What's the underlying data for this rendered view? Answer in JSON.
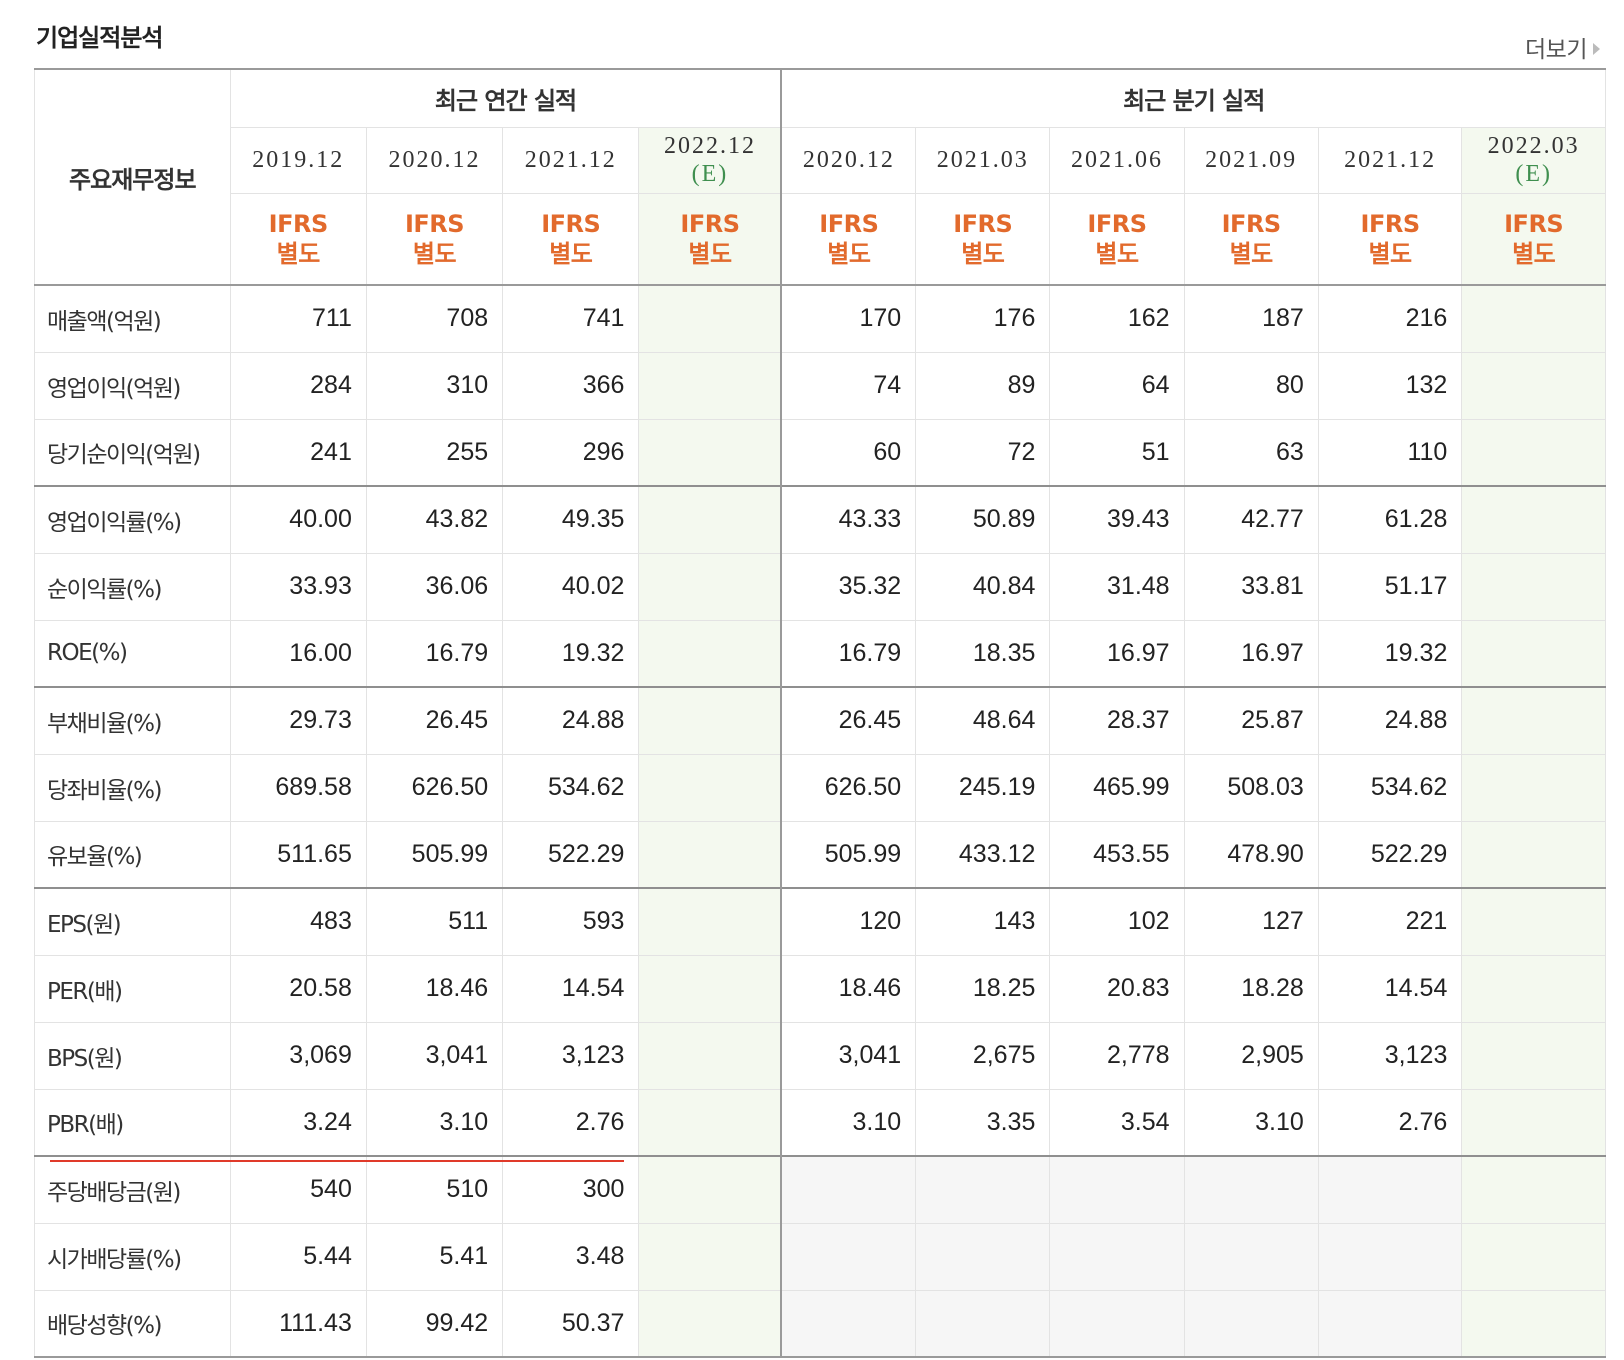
{
  "header": {
    "title": "기업실적분석",
    "more_label": "더보기"
  },
  "table": {
    "row_header": "주요재무정보",
    "groups": [
      "최근 연간 실적",
      "최근 분기 실적"
    ],
    "periods": [
      {
        "label": "2019.12",
        "est": ""
      },
      {
        "label": "2020.12",
        "est": ""
      },
      {
        "label": "2021.12",
        "est": ""
      },
      {
        "label": "2022.12",
        "est": "(E)"
      },
      {
        "label": "2020.12",
        "est": ""
      },
      {
        "label": "2021.03",
        "est": ""
      },
      {
        "label": "2021.06",
        "est": ""
      },
      {
        "label": "2021.09",
        "est": ""
      },
      {
        "label": "2021.12",
        "est": ""
      },
      {
        "label": "2022.03",
        "est": "(E)"
      }
    ],
    "ifrs_line1": "IFRS",
    "ifrs_line2": "별도",
    "rows": [
      {
        "label": "매출액(억원)",
        "values": [
          "711",
          "708",
          "741",
          "",
          "170",
          "176",
          "162",
          "187",
          "216",
          ""
        ]
      },
      {
        "label": "영업이익(억원)",
        "values": [
          "284",
          "310",
          "366",
          "",
          "74",
          "89",
          "64",
          "80",
          "132",
          ""
        ]
      },
      {
        "label": "당기순이익(억원)",
        "values": [
          "241",
          "255",
          "296",
          "",
          "60",
          "72",
          "51",
          "63",
          "110",
          ""
        ]
      },
      {
        "label": "영업이익률(%)",
        "values": [
          "40.00",
          "43.82",
          "49.35",
          "",
          "43.33",
          "50.89",
          "39.43",
          "42.77",
          "61.28",
          ""
        ]
      },
      {
        "label": "순이익률(%)",
        "values": [
          "33.93",
          "36.06",
          "40.02",
          "",
          "35.32",
          "40.84",
          "31.48",
          "33.81",
          "51.17",
          ""
        ]
      },
      {
        "label": "ROE(%)",
        "values": [
          "16.00",
          "16.79",
          "19.32",
          "",
          "16.79",
          "18.35",
          "16.97",
          "16.97",
          "19.32",
          ""
        ]
      },
      {
        "label": "부채비율(%)",
        "values": [
          "29.73",
          "26.45",
          "24.88",
          "",
          "26.45",
          "48.64",
          "28.37",
          "25.87",
          "24.88",
          ""
        ]
      },
      {
        "label": "당좌비율(%)",
        "values": [
          "689.58",
          "626.50",
          "534.62",
          "",
          "626.50",
          "245.19",
          "465.99",
          "508.03",
          "534.62",
          ""
        ]
      },
      {
        "label": "유보율(%)",
        "values": [
          "511.65",
          "505.99",
          "522.29",
          "",
          "505.99",
          "433.12",
          "453.55",
          "478.90",
          "522.29",
          ""
        ]
      },
      {
        "label": "EPS(원)",
        "values": [
          "483",
          "511",
          "593",
          "",
          "120",
          "143",
          "102",
          "127",
          "221",
          ""
        ]
      },
      {
        "label": "PER(배)",
        "values": [
          "20.58",
          "18.46",
          "14.54",
          "",
          "18.46",
          "18.25",
          "20.83",
          "18.28",
          "14.54",
          ""
        ]
      },
      {
        "label": "BPS(원)",
        "values": [
          "3,069",
          "3,041",
          "3,123",
          "",
          "3,041",
          "2,675",
          "2,778",
          "2,905",
          "3,123",
          ""
        ]
      },
      {
        "label": "PBR(배)",
        "values": [
          "3.24",
          "3.10",
          "2.76",
          "",
          "3.10",
          "3.35",
          "3.54",
          "3.10",
          "2.76",
          ""
        ]
      },
      {
        "label": "주당배당금(원)",
        "values": [
          "540",
          "510",
          "300",
          "",
          "",
          "",
          "",
          "",
          "",
          ""
        ]
      },
      {
        "label": "시가배당률(%)",
        "values": [
          "5.44",
          "5.41",
          "3.48",
          "",
          "",
          "",
          "",
          "",
          "",
          ""
        ]
      },
      {
        "label": "배당성향(%)",
        "values": [
          "111.43",
          "99.42",
          "50.37",
          "",
          "",
          "",
          "",
          "",
          "",
          ""
        ]
      }
    ]
  },
  "colors": {
    "ifrs": "#e26a2c",
    "estimate_text": "#3f8f4f",
    "estimate_bg": "#f4f9ef",
    "annotation_line": "#e03a2a"
  }
}
